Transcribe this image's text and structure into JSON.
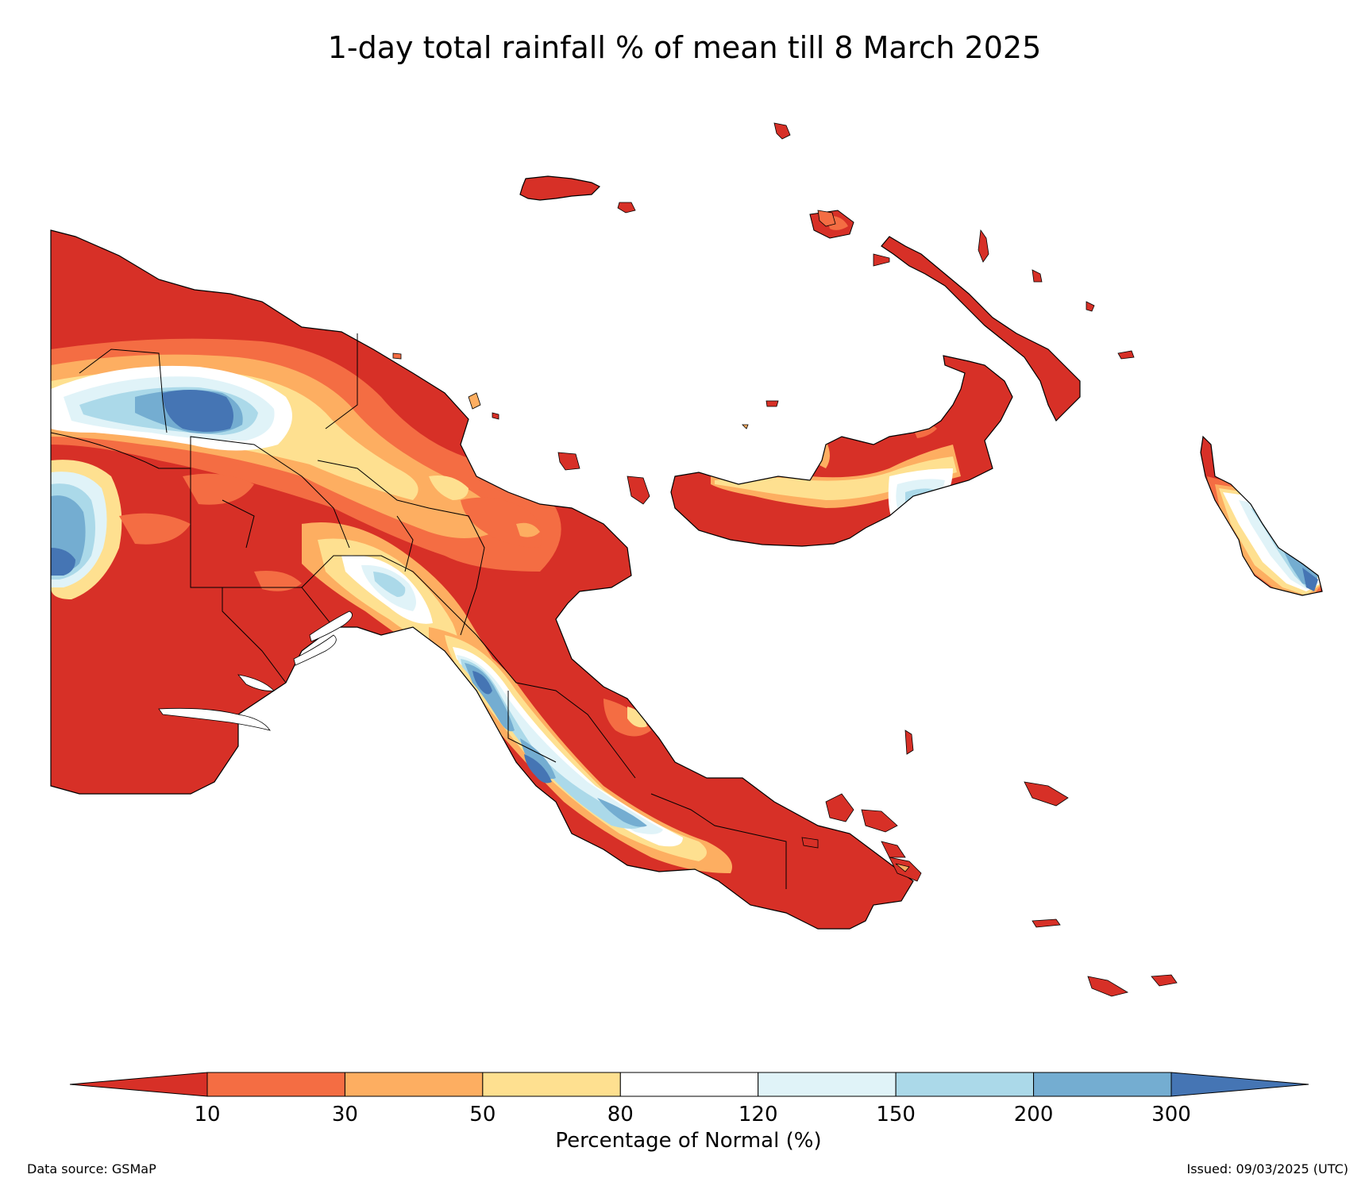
{
  "title": "1-day total rainfall % of mean till 8 March 2025",
  "legend": {
    "label": "Percentage of Normal (%)",
    "ticks": [
      "10",
      "30",
      "50",
      "80",
      "120",
      "150",
      "200",
      "300"
    ],
    "bins": [
      {
        "range": "<10",
        "color": "#d73027"
      },
      {
        "range": "10-30",
        "color": "#f46d43"
      },
      {
        "range": "30-50",
        "color": "#fdae61"
      },
      {
        "range": "50-80",
        "color": "#fee090"
      },
      {
        "range": "80-120",
        "color": "#ffffff"
      },
      {
        "range": "120-150",
        "color": "#e0f3f8"
      },
      {
        "range": "150-200",
        "color": "#abd9e9"
      },
      {
        "range": "200-300",
        "color": "#74add1"
      },
      {
        "range": ">300",
        "color": "#4575b4"
      }
    ]
  },
  "footer": {
    "source": "Data source: GSMaP",
    "issued": "Issued: 09/03/2025 (UTC)"
  }
}
